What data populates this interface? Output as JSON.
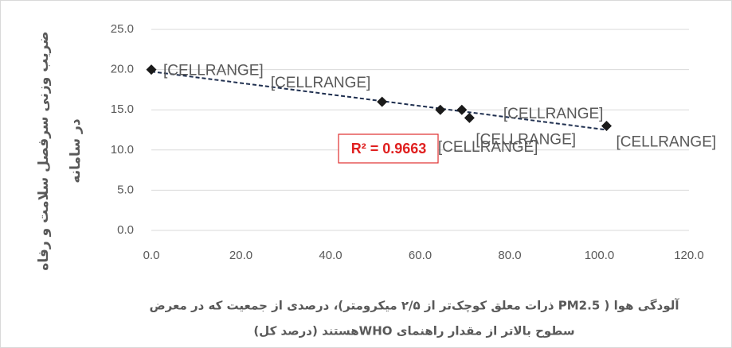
{
  "chart_data": {
    "type": "scatter",
    "x": [
      0,
      51.5,
      64.5,
      69.3,
      71,
      101.6
    ],
    "values": [
      20,
      16,
      15,
      15,
      14,
      13
    ],
    "point_labels": [
      "[CELLRANGE]",
      "[CELLRANGE]",
      "[CELLRANGE]",
      "[CELLRANGE]",
      "[CELLRANGE]",
      "[CELLRANGE]"
    ],
    "color": "#1a1a1a",
    "trendline": {
      "color": "#1f2f4f",
      "style": "dashed"
    },
    "annotation": "R² = 0.9663",
    "xlim": [
      0,
      120
    ],
    "xticks": [
      {
        "value": 0,
        "label": "0.0"
      },
      {
        "value": 20,
        "label": "20.0"
      },
      {
        "value": 40,
        "label": "40.0"
      },
      {
        "value": 60,
        "label": "60.0"
      },
      {
        "value": 80,
        "label": "80.0"
      },
      {
        "value": 100,
        "label": "100.0"
      },
      {
        "value": 120,
        "label": "120.0"
      }
    ],
    "ylim": [
      0,
      25
    ],
    "yticks": [
      {
        "value": 0,
        "label": "0.0"
      },
      {
        "value": 5,
        "label": "5.0"
      },
      {
        "value": 10,
        "label": "10.0"
      },
      {
        "value": 15,
        "label": "15.0"
      },
      {
        "value": 20,
        "label": "20.0"
      },
      {
        "value": 25,
        "label": "25.0"
      }
    ],
    "grid": true,
    "y_label": [
      "ضریب وزنی سرفصل سلامت و رفاه",
      "در سامانه"
    ],
    "x_label": [
      "آلودگی هوا ( PM2.5 ذرات معلق کوچک‌تر از ۲/۵ میکرومتر)، درصدی از جمعیت که در معرض",
      "سطوح بالاتر از مقدار راهنمای WHOهستند (درصد کل)"
    ]
  }
}
